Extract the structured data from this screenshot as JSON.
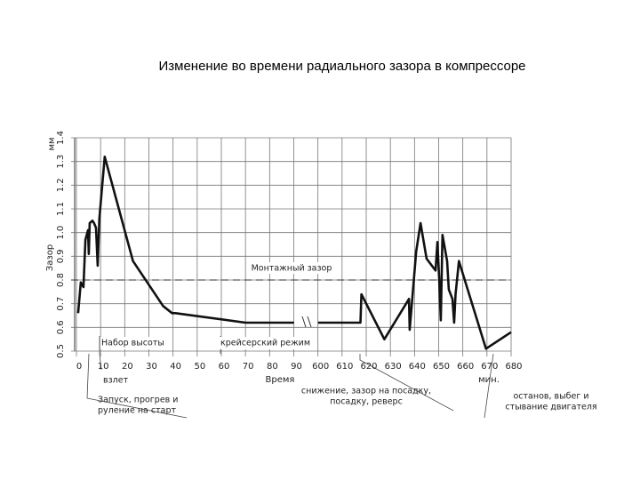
{
  "chart_data": {
    "type": "line",
    "title": "Изменение во времени радиального зазора в компрессоре",
    "ylabel": "Зазор",
    "yunit": "мм",
    "xlabel": "Время",
    "xunit": "мин.",
    "xlim": [
      0,
      680
    ],
    "xticks": [
      0,
      10,
      20,
      30,
      40,
      50,
      60,
      70,
      80,
      90,
      600,
      610,
      620,
      630,
      640,
      650,
      660,
      670,
      680
    ],
    "ylim": [
      0.5,
      1.4
    ],
    "yticks": [
      0.5,
      0.6,
      0.7,
      0.8,
      0.9,
      {
        "value": 1,
        "label": "1.0"
      },
      1.1,
      1.2,
      1.3,
      1.4
    ],
    "grid": true,
    "reference": {
      "value": 0.8,
      "label": "Монтажный зазор"
    },
    "series": [
      {
        "name": "Зазор",
        "color": "#111",
        "x": [
          0.7,
          1.8,
          2.9,
          3.7,
          4.8,
          5.1,
          5.5,
          6.6,
          7.3,
          8.1,
          8.8,
          9.5,
          11.7,
          23.4,
          35.9,
          39.6,
          41,
          70,
          93,
          null,
          600,
          617.6,
          618,
          627.5,
          637.7,
          638,
          640.7,
          642.5,
          645,
          648.7,
          649.5,
          650.2,
          650.9,
          651.6,
          653.5,
          654.2,
          655.7,
          656.4,
          657,
          658.4,
          669.6,
          680
        ],
        "values": [
          0.66,
          0.79,
          0.77,
          0.97,
          1.01,
          0.91,
          1.04,
          1.05,
          1.04,
          1.02,
          0.86,
          1.06,
          1.32,
          0.88,
          0.69,
          0.66,
          0.66,
          0.62,
          0.62,
          null,
          0.62,
          0.62,
          0.74,
          0.55,
          0.72,
          0.59,
          0.92,
          1.04,
          0.89,
          0.84,
          0.96,
          0.81,
          0.63,
          0.99,
          0.88,
          0.76,
          0.72,
          0.62,
          0.74,
          0.88,
          0.51,
          0.58
        ]
      }
    ],
    "annotations": [
      {
        "lines": [
          "Набор высоты"
        ]
      },
      {
        "lines": [
          "крейсерский режим"
        ]
      },
      {
        "lines": [
          "взлет"
        ]
      },
      {
        "lines": [
          "Запуск, прогрев и",
          "руление на старт"
        ]
      },
      {
        "lines": [
          "снижение, зазор на посадку,",
          "посадку, реверс"
        ]
      },
      {
        "lines": [
          "останов, выбег и",
          "стывание двигателя"
        ]
      }
    ]
  }
}
